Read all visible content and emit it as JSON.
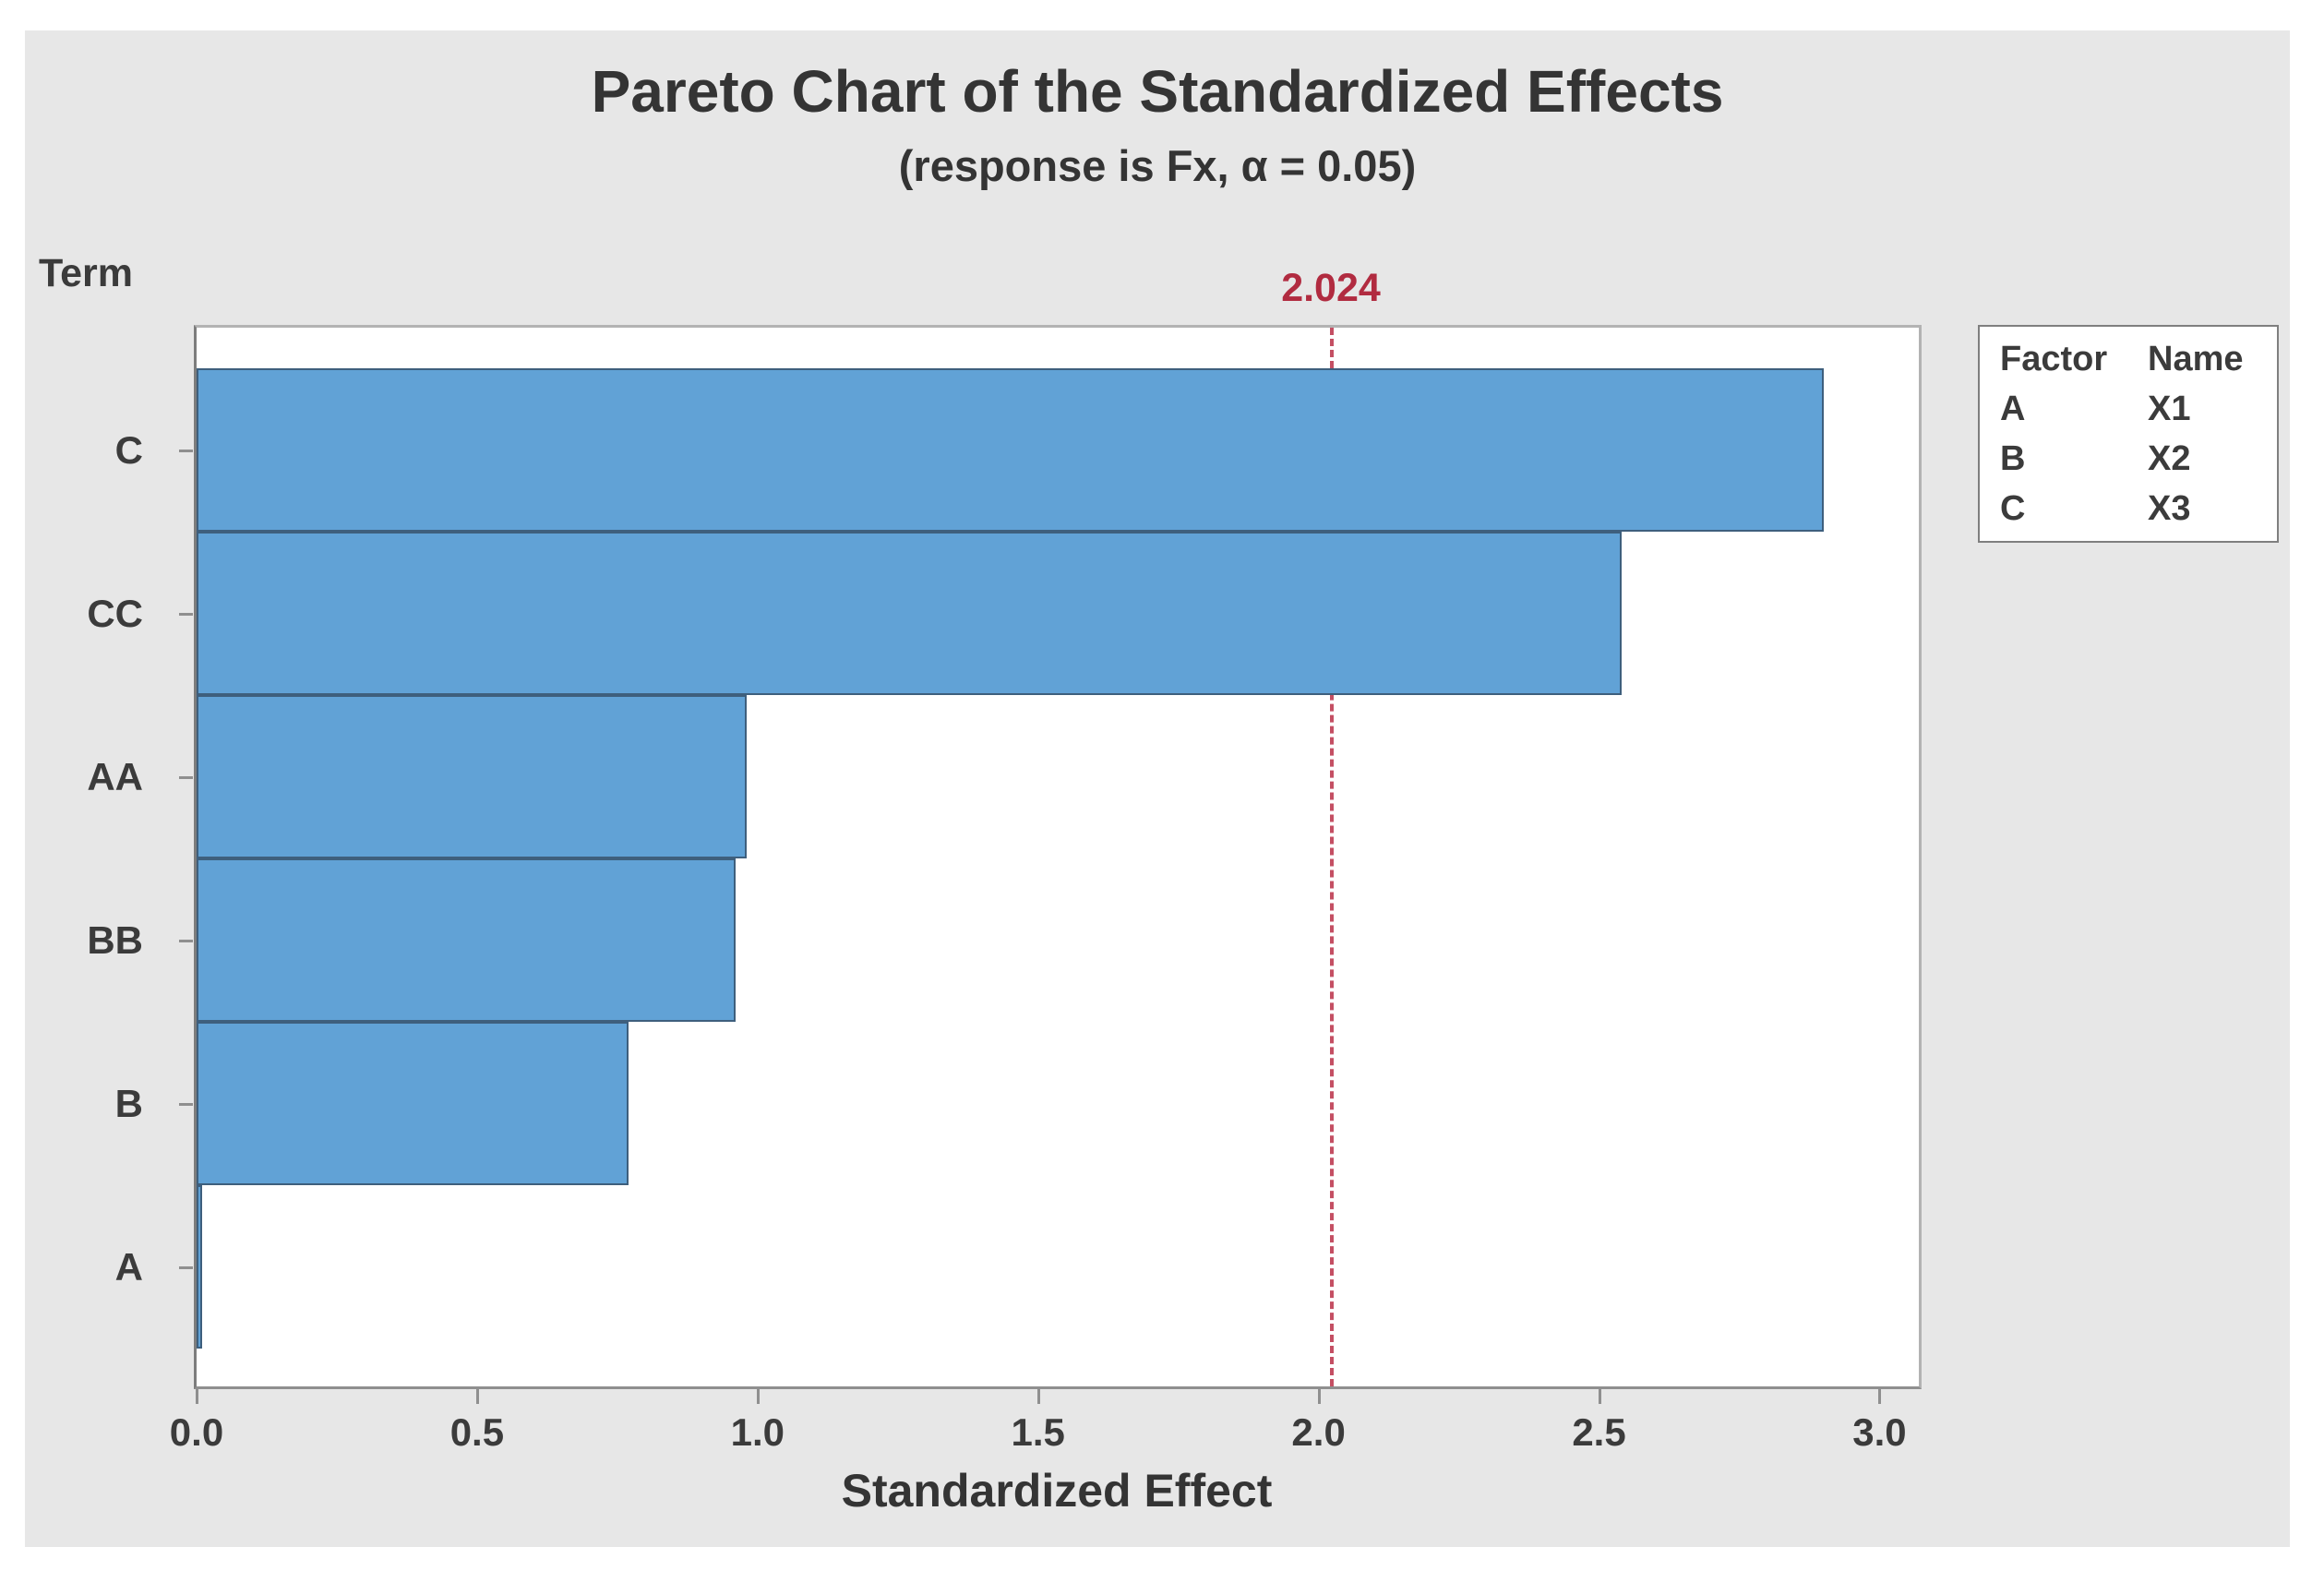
{
  "chart_data": {
    "type": "bar",
    "orientation": "horizontal",
    "title": "Pareto Chart of the Standardized Effects",
    "subtitle": "(response is Fx, α = 0.05)",
    "ylabel": "Term",
    "xlabel": "Standardized Effect",
    "categories": [
      "C",
      "CC",
      "AA",
      "BB",
      "B",
      "A"
    ],
    "values": [
      2.9,
      2.54,
      0.98,
      0.96,
      0.77,
      0.01
    ],
    "xlim": [
      0,
      3.07
    ],
    "xtick_labels": [
      "0.0",
      "0.5",
      "1.0",
      "1.5",
      "2.0",
      "2.5",
      "3.0"
    ],
    "xtick_values": [
      0,
      0.5,
      1,
      1.5,
      2,
      2.5,
      3
    ],
    "grid": false,
    "reference_line": {
      "value": 2.024,
      "label": "2.024",
      "style": "dashed"
    },
    "legend": {
      "position": "top-right",
      "headers": [
        "Factor",
        "Name"
      ],
      "rows": [
        {
          "factor": "A",
          "name": "X1"
        },
        {
          "factor": "B",
          "name": "X2"
        },
        {
          "factor": "C",
          "name": "X3"
        }
      ]
    }
  },
  "colors": {
    "bar_fill": "#61a2d6",
    "bar_border": "#3e5f7d",
    "reference_line": "#c44f63",
    "reference_label": "#b12b40",
    "panel_background": "#e7e7e7",
    "plot_background": "#ffffff",
    "text": "#3b3b3b"
  }
}
